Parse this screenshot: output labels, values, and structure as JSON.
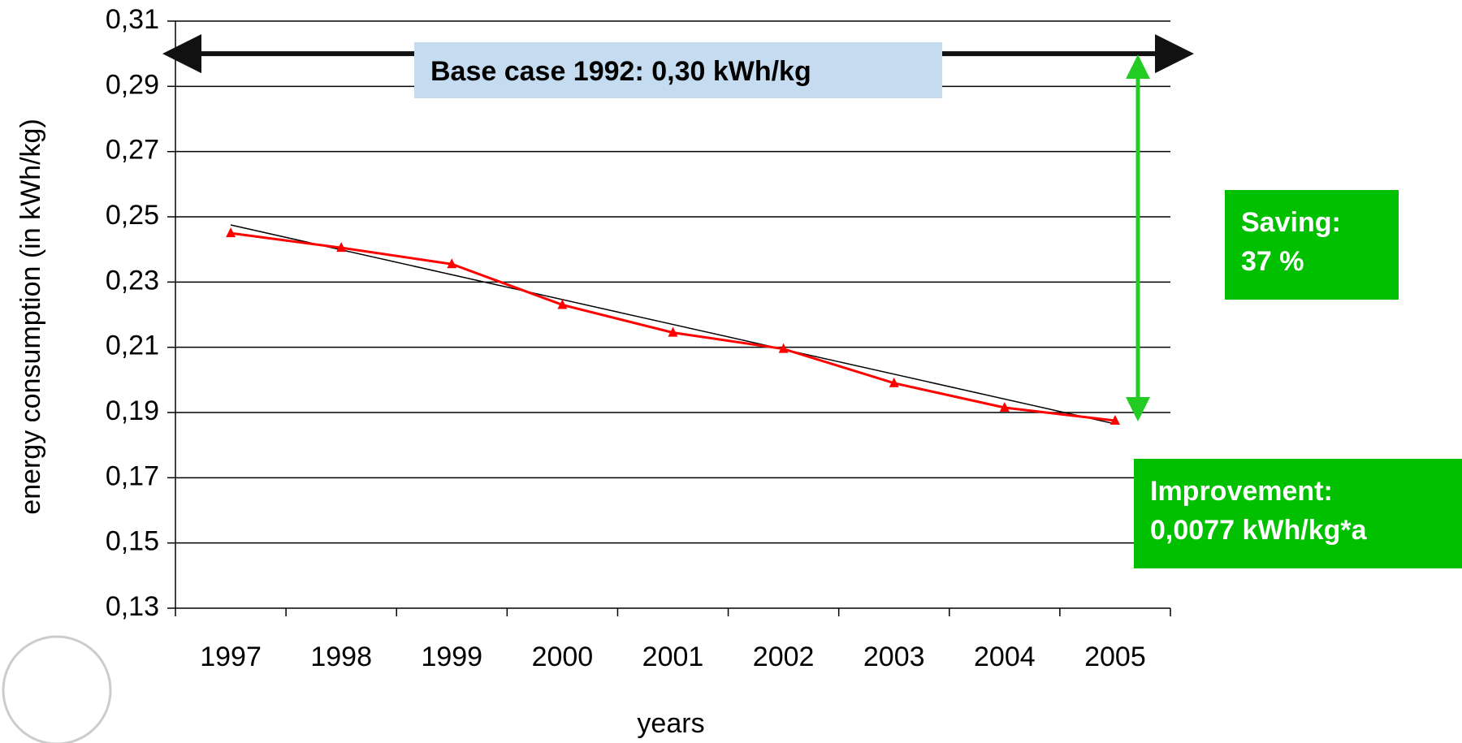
{
  "chart_data": {
    "type": "line",
    "y_label": "energy consumption (in kWh/kg)",
    "x_label": "years",
    "categories": [
      "1997",
      "1998",
      "1999",
      "2000",
      "2001",
      "2002",
      "2003",
      "2004",
      "2005"
    ],
    "series": [
      {
        "color": "#ff0000",
        "values": [
          0.245,
          0.2405,
          0.2355,
          0.223,
          0.2145,
          0.2095,
          0.199,
          0.1915,
          0.1875
        ]
      }
    ],
    "trendline": {
      "color": "#000000",
      "values": [
        0.2475,
        0.1865
      ]
    },
    "baseline": {
      "value": 0.3,
      "label": "Base case 1992: 0,30 kWh/kg"
    },
    "annotations": [
      [
        "Saving:",
        "37 %"
      ],
      [
        "Improvement:",
        "0,0077 kWh/kg*a"
      ]
    ],
    "annotation_color": "#00c000",
    "ylim": [
      0.13,
      0.31
    ],
    "yticks": [
      {
        "value": 0.13,
        "label": "0,13"
      },
      {
        "value": 0.15,
        "label": "0,15"
      },
      {
        "value": 0.17,
        "label": "0,17"
      },
      {
        "value": 0.19,
        "label": "0,19"
      },
      {
        "value": 0.21,
        "label": "0,21"
      },
      {
        "value": 0.23,
        "label": "0,23"
      },
      {
        "value": 0.25,
        "label": "0,25"
      },
      {
        "value": 0.27,
        "label": "0,27"
      },
      {
        "value": 0.29,
        "label": "0,29"
      },
      {
        "value": 0.31,
        "label": "0,31"
      }
    ],
    "grid": true
  }
}
